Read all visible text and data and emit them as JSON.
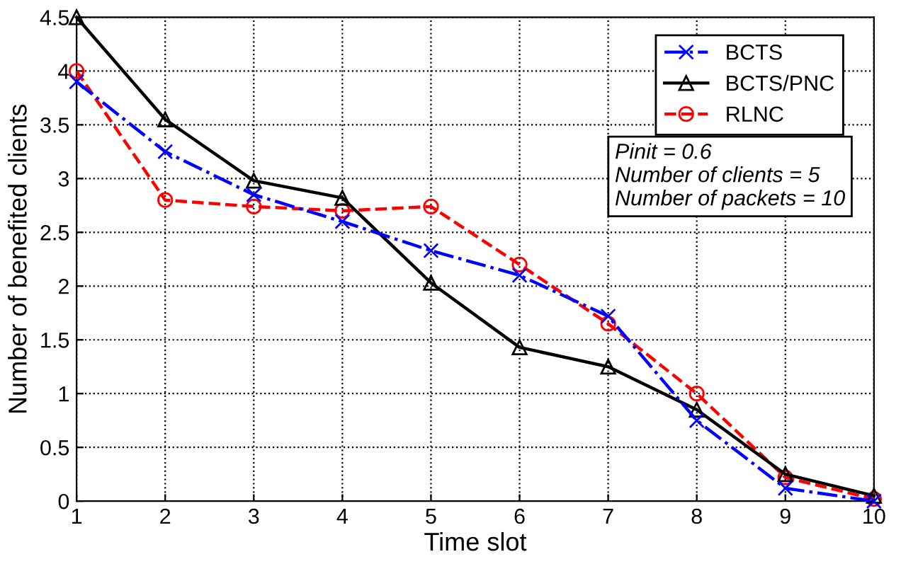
{
  "chart_data": {
    "type": "line",
    "xlabel": "Time slot",
    "ylabel": "Number of benefited clients",
    "x": [
      1,
      2,
      3,
      4,
      5,
      6,
      7,
      8,
      9,
      10
    ],
    "series": [
      {
        "name": "BCTS",
        "color": "#0000ff",
        "values": [
          3.9,
          3.25,
          2.85,
          2.6,
          2.33,
          2.1,
          1.72,
          0.75,
          0.12,
          0.0
        ],
        "marker": "cross",
        "line_style": "dashdot"
      },
      {
        "name": "BCTS/PNC",
        "color": "#000000",
        "values": [
          4.5,
          3.55,
          2.98,
          2.82,
          2.03,
          1.43,
          1.25,
          0.85,
          0.25,
          0.05
        ],
        "marker": "triangle",
        "line_style": "solid"
      },
      {
        "name": "RLNC",
        "color": "#ff0000",
        "values": [
          4.0,
          2.8,
          2.74,
          2.7,
          2.74,
          2.2,
          1.65,
          1.0,
          0.22,
          0.02
        ],
        "marker": "circle",
        "line_style": "dashed"
      }
    ],
    "xlim": [
      1,
      10
    ],
    "xticks": [
      1,
      2,
      3,
      4,
      5,
      6,
      7,
      8,
      9,
      10
    ],
    "ylim": [
      0,
      4.5
    ],
    "yticks": [
      0,
      0.5,
      1,
      1.5,
      2,
      2.5,
      3,
      3.5,
      4,
      4.5
    ],
    "grid": true,
    "legend": "top right",
    "annotations": [
      "Pinit = 0.6\nNumber of clients = 5\nNumber of packets = 10"
    ]
  }
}
